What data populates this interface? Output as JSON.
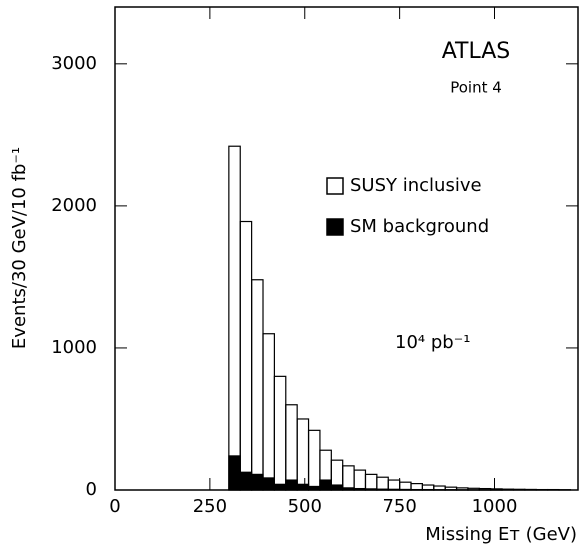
{
  "chart_data": {
    "type": "histogram",
    "title": "ATLAS",
    "subtitle": "Point 4",
    "annotation": "10⁴ pb⁻¹",
    "x_label": "Missing Eᴛ (GeV)",
    "y_label": "Events/30 GeV/10 fb⁻¹",
    "bins": [
      300,
      330,
      360,
      390,
      420,
      450,
      480,
      510,
      540,
      570,
      600,
      630,
      660,
      690,
      720,
      750,
      780,
      810,
      840,
      870,
      900,
      930,
      960,
      990,
      1020,
      1050,
      1080,
      1110,
      1140,
      1170,
      1200
    ],
    "series": [
      {
        "name": "SUSY inclusive",
        "color": "none",
        "values": [
          2420,
          1890,
          1480,
          1100,
          800,
          600,
          500,
          420,
          280,
          210,
          170,
          140,
          110,
          90,
          70,
          55,
          45,
          35,
          28,
          20,
          15,
          12,
          10,
          8,
          6,
          5,
          4,
          3,
          3,
          2
        ]
      },
      {
        "name": "SM background",
        "color": "#000000",
        "values": [
          240,
          125,
          110,
          85,
          40,
          70,
          40,
          25,
          70,
          35,
          15,
          10,
          8,
          6,
          5,
          4,
          3,
          3,
          2,
          2,
          1,
          1,
          1,
          1,
          0,
          0,
          0,
          0,
          0,
          0
        ]
      }
    ],
    "xlim": [
      0,
      1220
    ],
    "ylim": [
      0,
      3400
    ],
    "xticks": [
      0,
      250,
      500,
      750,
      1000
    ],
    "yticks": [
      0,
      1000,
      2000,
      3000
    ]
  }
}
